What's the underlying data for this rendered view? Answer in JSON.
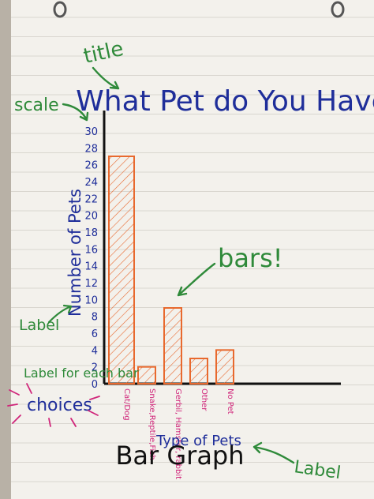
{
  "chart_data": {
    "type": "bar",
    "title": "What Pet do You Have?",
    "xlabel": "Type of Pets",
    "ylabel": "Number of Pets",
    "categories": [
      "Cat/Dog",
      "Snake,Reptile,Fish",
      "Gerbil, Hamster, rabbit",
      "Other",
      "No Pet"
    ],
    "values": [
      27,
      2,
      9,
      3,
      4
    ],
    "ylim": [
      0,
      30
    ],
    "yticks": [
      "0",
      "2",
      "4",
      "6",
      "8",
      "10",
      "12",
      "14",
      "16",
      "18",
      "20",
      "22",
      "24",
      "26",
      "28",
      "30"
    ],
    "grid": false,
    "bar_color": "#e8692e",
    "axis_color": "#111111",
    "tick_color": "#1f2e9a",
    "category_color": "#d0257a"
  },
  "annotations": {
    "title_note": "title",
    "scale_note": "scale",
    "bars_note": "bars!",
    "label_note_left": "Label",
    "label_note_bottom": "Label",
    "label_each_bar": "Label for each bar",
    "choices": "choices",
    "graph_name": "Bar Graph",
    "green": "#2f8a3a",
    "pink": "#d0257a"
  }
}
